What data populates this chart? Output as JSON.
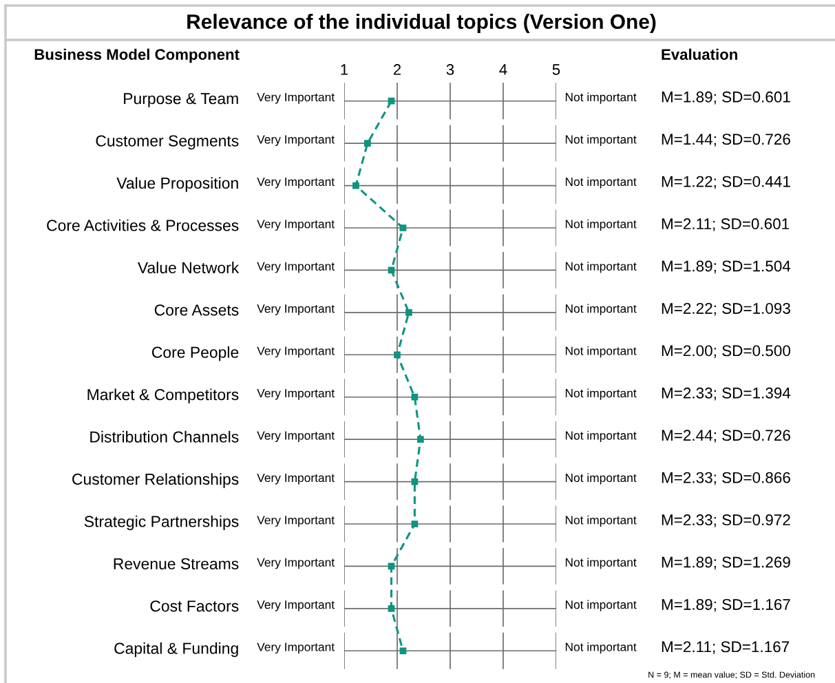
{
  "chart_data": {
    "type": "line",
    "orientation": "horizontal",
    "title": "Relevance of the individual topics (Version One)",
    "ylabel": "Business Model Component",
    "categories": [
      "Purpose & Team",
      "Customer Segments",
      "Value Proposition",
      "Core Activities & Processes",
      "Value Network",
      "Core Assets",
      "Core People",
      "Market & Competitors",
      "Distribution Channels",
      "Customer Relationships",
      "Strategic Partnerships",
      "Revenue Streams",
      "Cost Factors",
      "Capital & Funding"
    ],
    "series": [
      {
        "color": "#0e9480",
        "axis": "x2",
        "values": [
          1.89,
          1.44,
          1.22,
          2.11,
          1.89,
          2.22,
          2.0,
          2.33,
          2.44,
          2.33,
          2.33,
          1.89,
          1.89,
          2.11
        ],
        "value_labels": [
          "M=1.89; SD=0.601",
          "M=1.44; SD=0.726",
          "M=1.22; SD=0.441",
          "M=2.11; SD=0.601",
          "M=1.89; SD=1.504",
          "M=2.22; SD=1.093",
          "M=2.00; SD=0.500",
          "M=2.33; SD=1.394",
          "M=2.44; SD=0.726",
          "M=2.33; SD=0.866",
          "M=2.33; SD=0.972",
          "M=1.89; SD=1.269",
          "M=1.89; SD=1.167",
          "M=2.11; SD=1.167"
        ]
      }
    ],
    "marker": "square",
    "line_style": "dashed",
    "x2lim": [
      1,
      5
    ],
    "x2ticks": [
      1,
      2,
      3,
      4,
      5
    ],
    "grid": true,
    "annotations": [
      "Evaluation",
      "Very Important",
      "Not important",
      "Very Important",
      "Not important",
      "Very Important",
      "Not important",
      "Very Important",
      "Not important",
      "Very Important",
      "Not important",
      "Very Important",
      "Not important",
      "Very Important",
      "Not important",
      "Very Important",
      "Not important",
      "Very Important",
      "Not important",
      "Very Important",
      "Not important",
      "Very Important",
      "Not important",
      "Very Important",
      "Not important",
      "Very Important",
      "Not important",
      "Very Important",
      "Not important",
      "N = 9; M = mean value; SD = Std. Deviation"
    ]
  }
}
